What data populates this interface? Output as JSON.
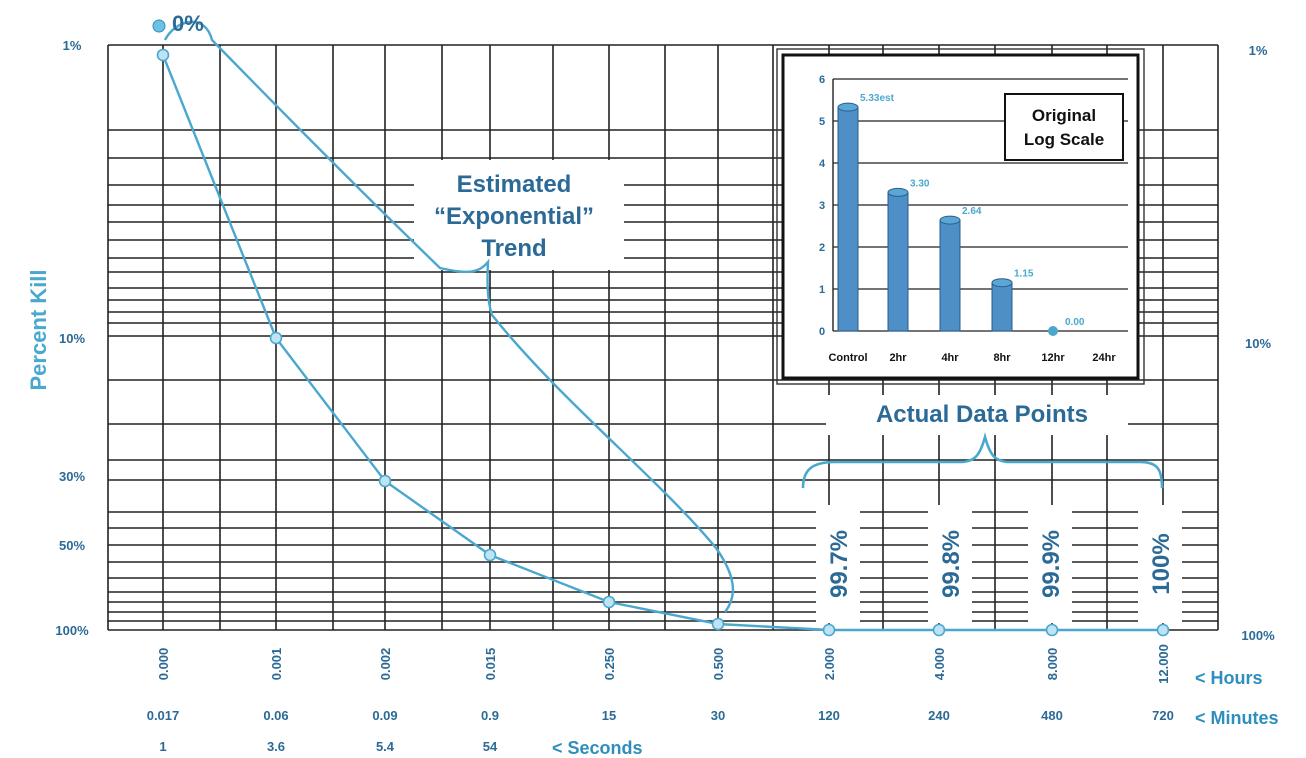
{
  "chart_data": [
    {
      "type": "line",
      "ylabel": "Percent Kill",
      "y_ticks": [
        "1%",
        "10%",
        "30%",
        "50%",
        "100%"
      ],
      "y_ticks_right": [
        "1%",
        "10%",
        "100%"
      ],
      "x_row_hours": [
        "0.000",
        "0.001",
        "0.002",
        "0.015",
        "0.250",
        "0.500",
        "2.000",
        "4.000",
        "8.000",
        "12.000"
      ],
      "x_row_minutes": [
        "0.017",
        "0.06",
        "0.09",
        "0.9",
        "15",
        "30",
        "120",
        "240",
        "480",
        "720"
      ],
      "x_row_seconds": [
        "1",
        "3.6",
        "5.4",
        "54"
      ],
      "unit_hours": "< Hours",
      "unit_minutes": "< Minutes",
      "unit_seconds": "< Seconds",
      "start_label": "0%",
      "series": [
        {
          "x_hours": [
            0.0,
            0.001,
            0.002,
            0.015,
            0.25,
            0.5,
            2,
            4,
            8,
            12
          ],
          "y_percent_kill": [
            0,
            10,
            30,
            50,
            70,
            95,
            99.7,
            99.8,
            99.9,
            100
          ]
        }
      ],
      "trend_annotation": [
        "Estimated",
        "“Exponential”",
        "Trend"
      ],
      "actual_annotation": "Actual Data Points",
      "data_point_labels": [
        "99.7%",
        "99.8%",
        "99.9%",
        "100%"
      ],
      "colors": {
        "series": "#4aa8cf",
        "text": "#2b6a96",
        "grid": "#222222"
      }
    },
    {
      "type": "bar",
      "title_lines": [
        "Original",
        "Log Scale"
      ],
      "categories": [
        "Control",
        "2hr",
        "4hr",
        "8hr",
        "12hr",
        "24hr"
      ],
      "values": [
        5.33,
        3.3,
        2.64,
        1.15,
        0.0,
        null
      ],
      "value_labels": [
        "5.33est",
        "3.30",
        "2.64",
        "1.15",
        "0.00",
        ""
      ],
      "ylim": [
        0,
        6
      ],
      "y_ticks": [
        "0",
        "1",
        "2",
        "3",
        "4",
        "5",
        "6"
      ],
      "colors": {
        "bar": "#4d8fc6",
        "label": "#4aa8cf"
      }
    }
  ]
}
